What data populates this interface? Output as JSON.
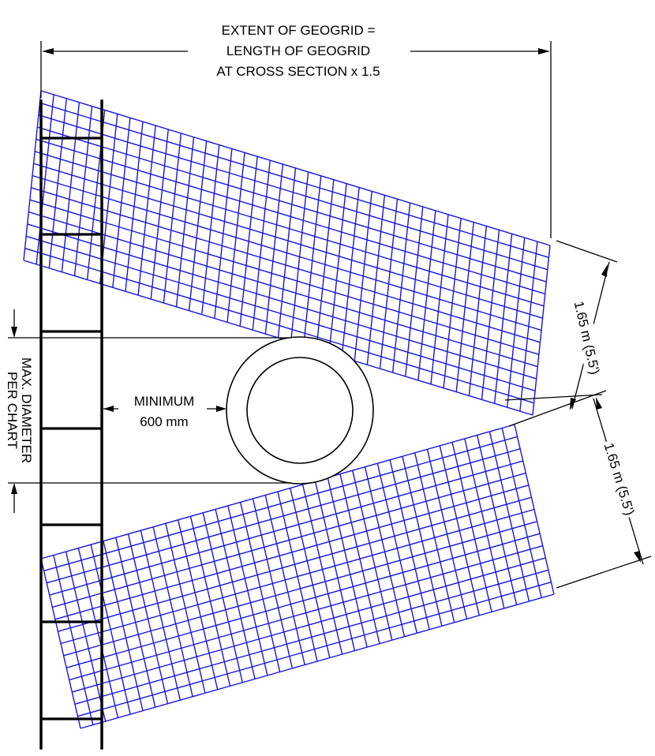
{
  "labels": {
    "extent_line1": "EXTENT OF GEOGRID =",
    "extent_line2": "LENGTH OF GEOGRID",
    "extent_line3": "AT CROSS SECTION x 1.5",
    "spacing_upper": "1.65 m (5.5')",
    "spacing_lower": "1.65 m (5.5')",
    "minimum_line1": "MINIMUM",
    "minimum_line2": "600 mm",
    "diameter_line1": "MAX. DIAMETER",
    "diameter_line2": "PER CHART"
  },
  "colors": {
    "geogrid": "#1616e0",
    "linework": "#000000"
  }
}
